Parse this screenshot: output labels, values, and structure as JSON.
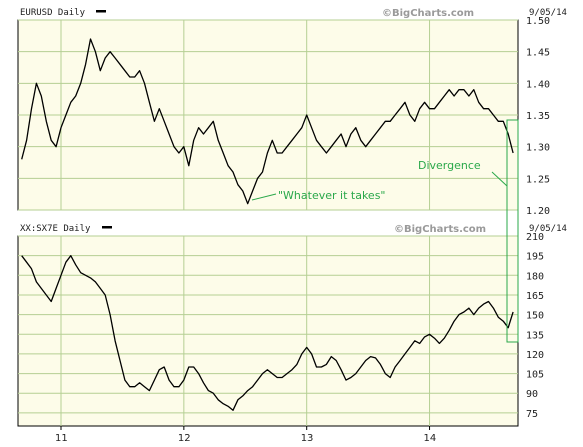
{
  "chart_data": [
    {
      "type": "line",
      "title": "EURUSD Daily",
      "watermark": "©BigCharts.com",
      "date": "9/05/14",
      "ylim": [
        1.2,
        1.5
      ],
      "y_ticks": [
        "1.50",
        "1.45",
        "1.40",
        "1.35",
        "1.30",
        "1.25",
        "1.20"
      ],
      "y_tick_values": [
        1.5,
        1.45,
        1.4,
        1.35,
        1.3,
        1.25,
        1.2
      ],
      "x_ticks": [
        "11",
        "12",
        "13",
        "14"
      ],
      "x_tick_values": [
        2011,
        2012,
        2013,
        2014
      ],
      "xlim": [
        2010.65,
        2014.72
      ],
      "grid": true,
      "series": [
        {
          "x": [
            2010.68,
            2010.72,
            2010.76,
            2010.8,
            2010.84,
            2010.88,
            2010.92,
            2010.96,
            2011.0,
            2011.04,
            2011.08,
            2011.12,
            2011.16,
            2011.2,
            2011.24,
            2011.28,
            2011.32,
            2011.36,
            2011.4,
            2011.44,
            2011.48,
            2011.52,
            2011.56,
            2011.6,
            2011.64,
            2011.68,
            2011.72,
            2011.76,
            2011.8,
            2011.84,
            2011.88,
            2011.92,
            2011.96,
            2012.0,
            2012.04,
            2012.08,
            2012.12,
            2012.16,
            2012.2,
            2012.24,
            2012.28,
            2012.32,
            2012.36,
            2012.4,
            2012.44,
            2012.48,
            2012.52,
            2012.56,
            2012.6,
            2012.64,
            2012.68,
            2012.72,
            2012.76,
            2012.8,
            2012.84,
            2012.88,
            2012.92,
            2012.96,
            2013.0,
            2013.04,
            2013.08,
            2013.12,
            2013.16,
            2013.2,
            2013.24,
            2013.28,
            2013.32,
            2013.36,
            2013.4,
            2013.44,
            2013.48,
            2013.52,
            2013.56,
            2013.6,
            2013.64,
            2013.68,
            2013.72,
            2013.76,
            2013.8,
            2013.84,
            2013.88,
            2013.92,
            2013.96,
            2014.0,
            2014.04,
            2014.08,
            2014.12,
            2014.16,
            2014.2,
            2014.24,
            2014.28,
            2014.32,
            2014.36,
            2014.4,
            2014.44,
            2014.48,
            2014.52,
            2014.56,
            2014.6,
            2014.64,
            2014.68
          ],
          "y": [
            1.28,
            1.31,
            1.36,
            1.4,
            1.38,
            1.34,
            1.31,
            1.3,
            1.33,
            1.35,
            1.37,
            1.38,
            1.4,
            1.43,
            1.47,
            1.45,
            1.42,
            1.44,
            1.45,
            1.44,
            1.43,
            1.42,
            1.41,
            1.41,
            1.42,
            1.4,
            1.37,
            1.34,
            1.36,
            1.34,
            1.32,
            1.3,
            1.29,
            1.3,
            1.27,
            1.31,
            1.33,
            1.32,
            1.33,
            1.34,
            1.31,
            1.29,
            1.27,
            1.26,
            1.24,
            1.23,
            1.21,
            1.23,
            1.25,
            1.26,
            1.29,
            1.31,
            1.29,
            1.29,
            1.3,
            1.31,
            1.32,
            1.33,
            1.35,
            1.33,
            1.31,
            1.3,
            1.29,
            1.3,
            1.31,
            1.32,
            1.3,
            1.32,
            1.33,
            1.31,
            1.3,
            1.31,
            1.32,
            1.33,
            1.34,
            1.34,
            1.35,
            1.36,
            1.37,
            1.35,
            1.34,
            1.36,
            1.37,
            1.36,
            1.36,
            1.37,
            1.38,
            1.39,
            1.38,
            1.39,
            1.39,
            1.38,
            1.39,
            1.37,
            1.36,
            1.36,
            1.35,
            1.34,
            1.34,
            1.32,
            1.29
          ]
        }
      ],
      "annotations": [
        {
          "text": "\"Whatever it takes\"",
          "color": "#2aa84a"
        },
        {
          "text": "Divergence",
          "color": "#2aa84a"
        }
      ]
    },
    {
      "type": "line",
      "title": "XX:SX7E Daily",
      "watermark": "©BigCharts.com",
      "date": "9/05/14",
      "ylim": [
        65,
        210
      ],
      "y_ticks": [
        "210",
        "195",
        "180",
        "165",
        "150",
        "135",
        "120",
        "105",
        "90",
        "75"
      ],
      "y_tick_values": [
        210,
        195,
        180,
        165,
        150,
        135,
        120,
        105,
        90,
        75
      ],
      "x_ticks": [
        "11",
        "12",
        "13",
        "14"
      ],
      "x_tick_values": [
        2011,
        2012,
        2013,
        2014
      ],
      "xlim": [
        2010.65,
        2014.72
      ],
      "grid": true,
      "series": [
        {
          "x": [
            2010.68,
            2010.72,
            2010.76,
            2010.8,
            2010.84,
            2010.88,
            2010.92,
            2010.96,
            2011.0,
            2011.04,
            2011.08,
            2011.12,
            2011.16,
            2011.2,
            2011.24,
            2011.28,
            2011.32,
            2011.36,
            2011.4,
            2011.44,
            2011.48,
            2011.52,
            2011.56,
            2011.6,
            2011.64,
            2011.68,
            2011.72,
            2011.76,
            2011.8,
            2011.84,
            2011.88,
            2011.92,
            2011.96,
            2012.0,
            2012.04,
            2012.08,
            2012.12,
            2012.16,
            2012.2,
            2012.24,
            2012.28,
            2012.32,
            2012.36,
            2012.4,
            2012.44,
            2012.48,
            2012.52,
            2012.56,
            2012.6,
            2012.64,
            2012.68,
            2012.72,
            2012.76,
            2012.8,
            2012.84,
            2012.88,
            2012.92,
            2012.96,
            2013.0,
            2013.04,
            2013.08,
            2013.12,
            2013.16,
            2013.2,
            2013.24,
            2013.28,
            2013.32,
            2013.36,
            2013.4,
            2013.44,
            2013.48,
            2013.52,
            2013.56,
            2013.6,
            2013.64,
            2013.68,
            2013.72,
            2013.76,
            2013.8,
            2013.84,
            2013.88,
            2013.92,
            2013.96,
            2014.0,
            2014.04,
            2014.08,
            2014.12,
            2014.16,
            2014.2,
            2014.24,
            2014.28,
            2014.32,
            2014.36,
            2014.4,
            2014.44,
            2014.48,
            2014.52,
            2014.56,
            2014.6,
            2014.64,
            2014.68
          ],
          "y": [
            195,
            190,
            185,
            175,
            170,
            165,
            160,
            170,
            180,
            190,
            195,
            188,
            182,
            180,
            178,
            175,
            170,
            165,
            150,
            130,
            115,
            100,
            95,
            95,
            98,
            95,
            92,
            100,
            108,
            110,
            100,
            95,
            95,
            100,
            110,
            110,
            105,
            98,
            92,
            90,
            85,
            82,
            80,
            77,
            85,
            88,
            92,
            95,
            100,
            105,
            108,
            105,
            102,
            102,
            105,
            108,
            112,
            120,
            125,
            120,
            110,
            110,
            112,
            118,
            115,
            108,
            100,
            102,
            105,
            110,
            115,
            118,
            117,
            112,
            105,
            102,
            110,
            115,
            120,
            125,
            130,
            128,
            133,
            135,
            132,
            128,
            132,
            138,
            145,
            150,
            152,
            155,
            150,
            155,
            158,
            160,
            155,
            148,
            145,
            140,
            152
          ]
        }
      ]
    }
  ],
  "colors": {
    "plot_bg": "#fdfce9",
    "grid": "#b5cf93",
    "line": "#000000",
    "annotation": "#2aa84a"
  }
}
